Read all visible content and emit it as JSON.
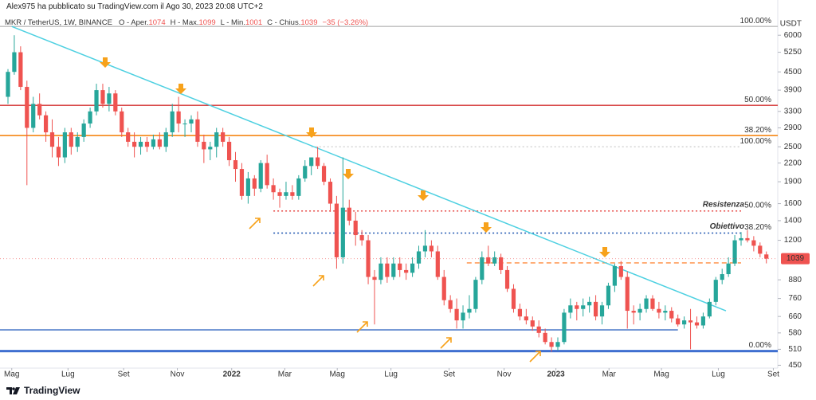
{
  "header": {
    "author_line": "Alex975 ha pubblicato su TradingView.com il Ago 30, 2023 20:08 UTC+2"
  },
  "footer": {
    "brand": "TradingView"
  },
  "chart_data": {
    "type": "candlestick",
    "symbol": "MKR / TetherUS, 1W, BINANCE",
    "ohlc_labels": [
      "O - Aper.",
      "H - Max.",
      "L - Min.",
      "C - Chius."
    ],
    "change": "−35 (−3.26%)",
    "currency": "USDT",
    "log": true,
    "up_color": "#26a69a",
    "down_color": "#ef5350",
    "ylim": [
      440,
      6640
    ],
    "yticks": [
      6000,
      5250,
      4500,
      3900,
      3300,
      2900,
      2500,
      2200,
      1900,
      1600,
      1400,
      1200,
      880,
      760,
      660,
      580,
      510,
      450
    ],
    "xlim": [
      -1.26,
      121.8
    ],
    "xticks": [
      {
        "value": 0.6,
        "label": "Mag"
      },
      {
        "value": 9.5,
        "label": "Lug"
      },
      {
        "value": 18.3,
        "label": "Set"
      },
      {
        "value": 26.8,
        "label": "Nov"
      },
      {
        "value": 35.4,
        "label": "2022"
      },
      {
        "value": 43.8,
        "label": "Mar"
      },
      {
        "value": 52.1,
        "label": "Mag"
      },
      {
        "value": 60.6,
        "label": "Lug"
      },
      {
        "value": 69.8,
        "label": "Set"
      },
      {
        "value": 78.5,
        "label": "Nov"
      },
      {
        "value": 86.7,
        "label": "2023"
      },
      {
        "value": 95.1,
        "label": "Mar"
      },
      {
        "value": 103.4,
        "label": "Mag"
      },
      {
        "value": 112.4,
        "label": "Lug"
      },
      {
        "value": 121.1,
        "label": "Set"
      }
    ],
    "candles": [
      [
        3700,
        4600,
        3500,
        4500
      ],
      [
        4500,
        6000,
        4400,
        5250
      ],
      [
        5250,
        5500,
        3900,
        4000
      ],
      [
        4000,
        4200,
        1850,
        2900
      ],
      [
        2900,
        3700,
        2800,
        3500
      ],
      [
        3500,
        3800,
        3100,
        3200
      ],
      [
        3200,
        3300,
        2600,
        2800
      ],
      [
        2800,
        3100,
        2300,
        2500
      ],
      [
        2500,
        2700,
        2150,
        2300
      ],
      [
        2300,
        2900,
        2200,
        2800
      ],
      [
        2800,
        2900,
        2350,
        2500
      ],
      [
        2500,
        2800,
        2400,
        2700
      ],
      [
        2700,
        3100,
        2600,
        3000
      ],
      [
        3000,
        3400,
        2900,
        3300
      ],
      [
        3300,
        4100,
        3200,
        3900
      ],
      [
        3900,
        4100,
        3400,
        3500
      ],
      [
        3500,
        4000,
        3300,
        3800
      ],
      [
        3800,
        3900,
        3200,
        3300
      ],
      [
        3300,
        3400,
        2700,
        2800
      ],
      [
        2800,
        2900,
        2500,
        2600
      ],
      [
        2600,
        2800,
        2300,
        2500
      ],
      [
        2500,
        2700,
        2350,
        2600
      ],
      [
        2600,
        2700,
        2400,
        2500
      ],
      [
        2500,
        2750,
        2450,
        2650
      ],
      [
        2650,
        2800,
        2450,
        2500
      ],
      [
        2500,
        2900,
        2400,
        2800
      ],
      [
        2800,
        3500,
        2700,
        3300
      ],
      [
        3300,
        3700,
        2800,
        3000
      ],
      [
        3000,
        3100,
        2700,
        3000
      ],
      [
        3000,
        3200,
        2800,
        3100
      ],
      [
        3100,
        3300,
        2500,
        2600
      ],
      [
        2600,
        2750,
        2200,
        2450
      ],
      [
        2450,
        2600,
        2250,
        2500
      ],
      [
        2500,
        2900,
        2300,
        2800
      ],
      [
        2800,
        2900,
        2500,
        2600
      ],
      [
        2600,
        2700,
        2150,
        2250
      ],
      [
        2250,
        2400,
        1900,
        2100
      ],
      [
        2100,
        2200,
        1650,
        1700
      ],
      [
        1700,
        2050,
        1600,
        1950
      ],
      [
        1950,
        2000,
        1700,
        1800
      ],
      [
        1800,
        2250,
        1750,
        2200
      ],
      [
        2200,
        2350,
        1800,
        1850
      ],
      [
        1850,
        1950,
        1650,
        1750
      ],
      [
        1750,
        1800,
        1550,
        1700
      ],
      [
        1700,
        1900,
        1650,
        1750
      ],
      [
        1750,
        1850,
        1650,
        1700
      ],
      [
        1700,
        2000,
        1650,
        1950
      ],
      [
        1950,
        2250,
        1900,
        2150
      ],
      [
        2150,
        2300,
        2000,
        2300
      ],
      [
        2300,
        2500,
        2100,
        2150
      ],
      [
        2150,
        2200,
        1850,
        1900
      ],
      [
        1900,
        1950,
        1500,
        1600
      ],
      [
        1600,
        1700,
        960,
        1050
      ],
      [
        1050,
        2300,
        1000,
        1550
      ],
      [
        1550,
        1650,
        1350,
        1400
      ],
      [
        1400,
        1500,
        1150,
        1250
      ],
      [
        1250,
        1300,
        1150,
        1200
      ],
      [
        1200,
        1250,
        850,
        900
      ],
      [
        900,
        950,
        620,
        880
      ],
      [
        880,
        1050,
        850,
        1000
      ],
      [
        1000,
        1050,
        860,
        900
      ],
      [
        900,
        1050,
        880,
        1000
      ],
      [
        1000,
        1050,
        900,
        950
      ],
      [
        950,
        1000,
        880,
        930
      ],
      [
        930,
        1050,
        900,
        1000
      ],
      [
        1000,
        1150,
        960,
        1100
      ],
      [
        1100,
        1300,
        1050,
        1150
      ],
      [
        1150,
        1200,
        1050,
        1100
      ],
      [
        1100,
        1150,
        880,
        900
      ],
      [
        900,
        950,
        720,
        750
      ],
      [
        750,
        780,
        680,
        700
      ],
      [
        700,
        760,
        600,
        640
      ],
      [
        640,
        720,
        600,
        680
      ],
      [
        680,
        780,
        650,
        700
      ],
      [
        700,
        900,
        680,
        880
      ],
      [
        880,
        1100,
        850,
        1050
      ],
      [
        1050,
        1150,
        980,
        1000
      ],
      [
        1000,
        1100,
        980,
        1050
      ],
      [
        1050,
        1080,
        920,
        950
      ],
      [
        950,
        980,
        800,
        820
      ],
      [
        820,
        850,
        680,
        700
      ],
      [
        700,
        730,
        640,
        660
      ],
      [
        660,
        700,
        620,
        640
      ],
      [
        640,
        660,
        590,
        610
      ],
      [
        610,
        640,
        560,
        580
      ],
      [
        580,
        600,
        530,
        540
      ],
      [
        540,
        560,
        500,
        520
      ],
      [
        520,
        560,
        505,
        540
      ],
      [
        540,
        700,
        530,
        680
      ],
      [
        680,
        760,
        650,
        720
      ],
      [
        720,
        740,
        640,
        700
      ],
      [
        700,
        760,
        660,
        720
      ],
      [
        720,
        770,
        680,
        740
      ],
      [
        740,
        780,
        640,
        660
      ],
      [
        660,
        740,
        620,
        720
      ],
      [
        720,
        860,
        700,
        840
      ],
      [
        840,
        1000,
        800,
        980
      ],
      [
        980,
        1020,
        880,
        900
      ],
      [
        900,
        940,
        600,
        690
      ],
      [
        690,
        720,
        620,
        680
      ],
      [
        680,
        730,
        640,
        700
      ],
      [
        700,
        780,
        680,
        760
      ],
      [
        760,
        780,
        690,
        700
      ],
      [
        700,
        740,
        650,
        680
      ],
      [
        680,
        720,
        640,
        690
      ],
      [
        690,
        710,
        630,
        650
      ],
      [
        650,
        670,
        610,
        620
      ],
      [
        620,
        660,
        600,
        640
      ],
      [
        640,
        700,
        510,
        630
      ],
      [
        630,
        660,
        600,
        615
      ],
      [
        615,
        680,
        600,
        660
      ],
      [
        660,
        760,
        650,
        740
      ],
      [
        740,
        900,
        720,
        880
      ],
      [
        880,
        960,
        850,
        920
      ],
      [
        920,
        1050,
        900,
        1000
      ],
      [
        1000,
        1250,
        980,
        1200
      ],
      [
        1200,
        1280,
        1150,
        1220
      ],
      [
        1220,
        1300,
        1180,
        1200
      ],
      [
        1200,
        1240,
        1100,
        1150
      ],
      [
        1150,
        1180,
        1050,
        1080
      ],
      [
        1074,
        1099,
        1001,
        1039
      ]
    ],
    "trendline": {
      "from": [
        0.6,
        6430
      ],
      "to": [
        113.6,
        690
      ],
      "color": "#4dd0e1"
    },
    "levels": [
      {
        "value": 6430,
        "label": "100.00%",
        "color": "#bdbdbd",
        "style": "solid",
        "from": -1.26
      },
      {
        "value": 3460,
        "label": "50.00%",
        "color": "#d32f2f",
        "style": "solid",
        "from": -1.26
      },
      {
        "value": 2730,
        "label": "38.20%",
        "color": "#f57c00",
        "style": "solid",
        "from": -1.26
      },
      {
        "value": 2500,
        "label": "100.00%",
        "color": "#cfcfcf",
        "style": "dotted",
        "from": 48
      },
      {
        "value": 1510,
        "label": "50.00%",
        "color": "#e53935",
        "style": "dotted",
        "from": 42,
        "note": "Resistenza"
      },
      {
        "value": 1270,
        "label": "38.20%",
        "color": "#1e56b0",
        "style": "dotted",
        "from": 42,
        "note": "Obiettivo"
      },
      {
        "value": 1005,
        "color": "#ff8a3d",
        "style": "dashed",
        "from": 72.6
      },
      {
        "value": 594,
        "color": "#4a78c8",
        "style": "solid",
        "from": -1.26,
        "to": 106
      },
      {
        "value": 503,
        "label": "0.00%",
        "color": "#3f6fd0",
        "style": "thick",
        "from": -1.26
      }
    ]
  }
}
